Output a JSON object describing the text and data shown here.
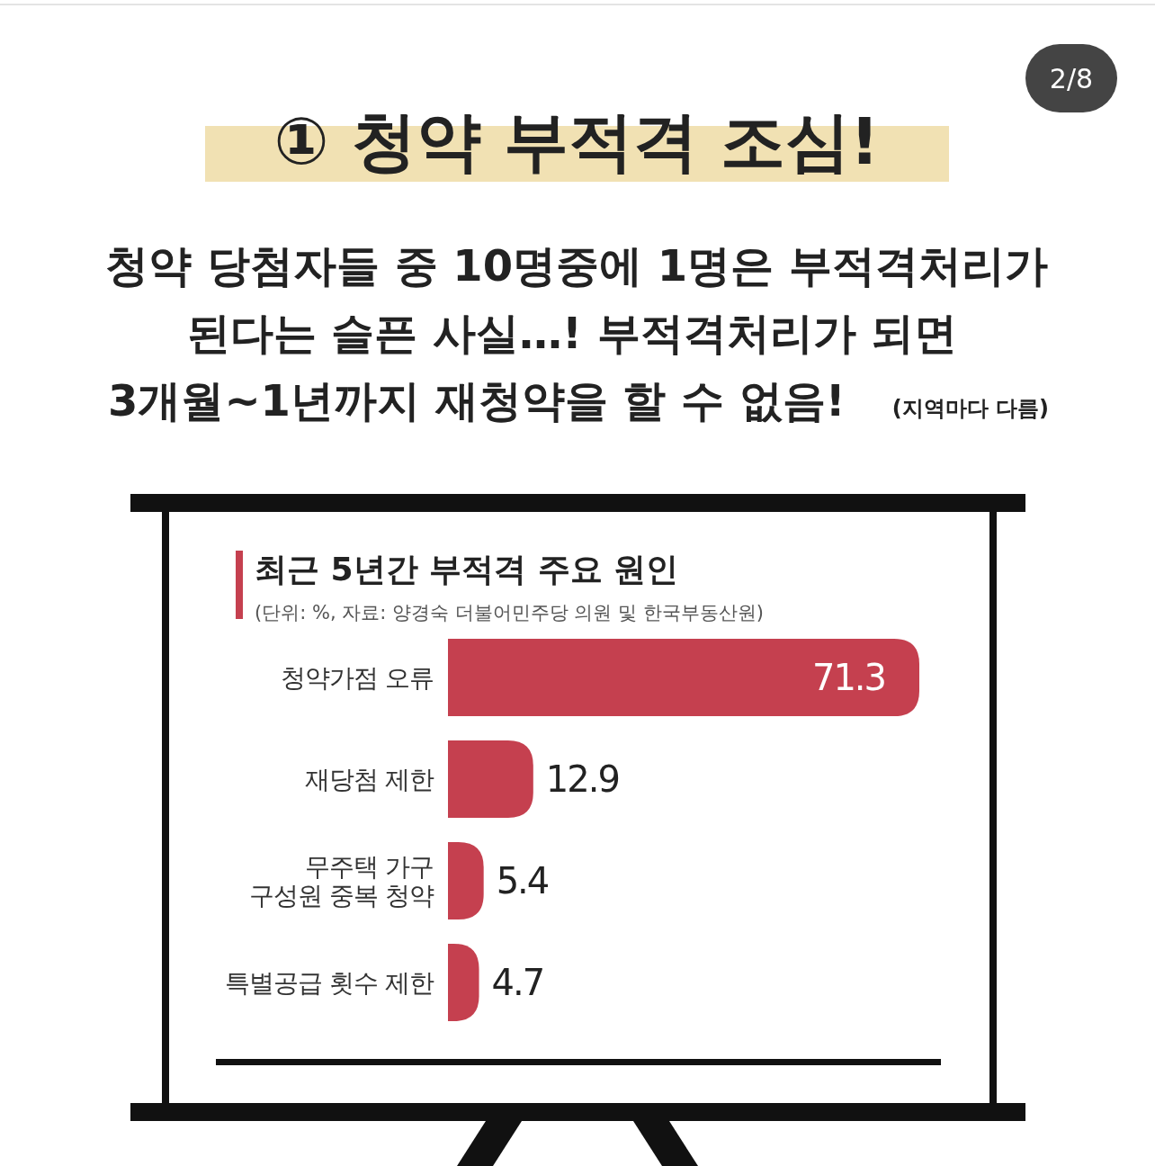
{
  "chart_data": {
    "type": "bar",
    "orientation": "horizontal",
    "title": "최근 5년간 부적격 주요 원인",
    "subtitle": "(단위: %, 자료: 양경숙 더불어민주당 의원 및 한국부동산원)",
    "annotations": [
      "① 청약 부적격 조심!",
      "청약 당첨자들 중 10명중에 1명은 부적격처리가",
      "된다는 슬픈 사실…! 부적격처리가 되면",
      "3개월~1년까지 재청약을 할 수 없음!",
      "(지역마다 다름)",
      "2/8"
    ],
    "categories": [
      "청약가점 오류",
      "재당첨 제한",
      "무주택 가구\n구성원 중복 청약",
      "특별공급 횟수 제한"
    ],
    "values": [
      71.3,
      12.9,
      5.4,
      4.7
    ],
    "color": "#c5404f",
    "data_labels": true
  }
}
